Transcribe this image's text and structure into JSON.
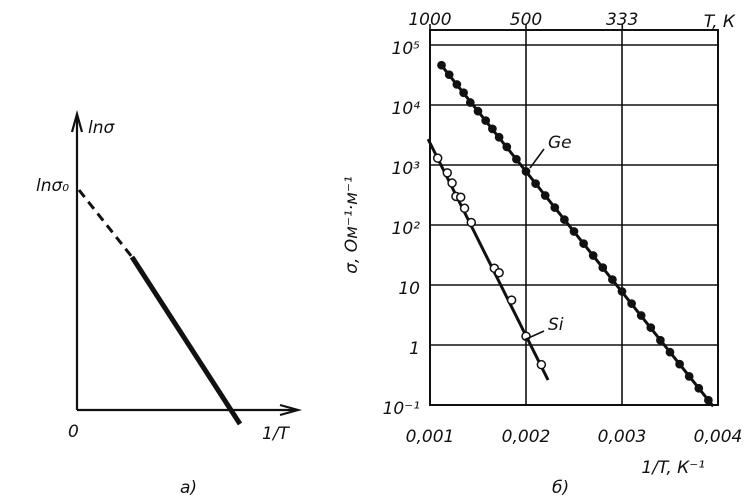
{
  "chart_data": [
    {
      "type": "schematic",
      "ylabel": "lnσ",
      "y_intercept_label": "lnσ₀",
      "origin_label": "0",
      "xlabel": "1/T",
      "panel_label": "а)"
    },
    {
      "type": "scatter",
      "yscale": "log",
      "grid": true,
      "panel_label": "б)",
      "xlabel": "1/T, К⁻¹",
      "ylabel": "σ, Ом⁻¹·м⁻¹",
      "x2label": "T, К",
      "xlim": [
        0.001,
        0.004
      ],
      "xticks": [
        {
          "value": 0.001,
          "label": "0,001"
        },
        {
          "value": 0.002,
          "label": "0,002"
        },
        {
          "value": 0.003,
          "label": "0,003"
        },
        {
          "value": 0.004,
          "label": "0,004"
        }
      ],
      "x2_transform": "reciprocal",
      "x2ticks": [
        1000,
        500,
        333
      ],
      "ylim": [
        0.1,
        100000
      ],
      "yticks": [
        {
          "value": 0.1,
          "label": "10⁻¹"
        },
        1,
        10,
        {
          "value": 100,
          "label": "10²"
        },
        {
          "value": 1000,
          "label": "10³"
        },
        {
          "value": 10000,
          "label": "10⁴"
        },
        {
          "value": 100000,
          "label": "10⁵"
        }
      ],
      "series": [
        {
          "name": "Ge",
          "color": "#111",
          "marker": "filled",
          "x": [
            0.00112,
            0.0012,
            0.00128,
            0.00135,
            0.00142,
            0.0015,
            0.00158,
            0.00165,
            0.00172,
            0.0018,
            0.0019,
            0.002,
            0.0021,
            0.0022,
            0.0023,
            0.0024,
            0.0025,
            0.0026,
            0.0027,
            0.0028,
            0.0029,
            0.003,
            0.0031,
            0.0032,
            0.0033,
            0.0034,
            0.0035,
            0.0036,
            0.0037,
            0.0038,
            0.0039
          ],
          "values": [
            46000,
            32000,
            22000,
            16000,
            11000,
            7900,
            5500,
            4000,
            2900,
            2000,
            1250,
            780,
            490,
            310,
            195,
            123,
            78,
            49,
            31,
            19.5,
            12.3,
            7.8,
            4.9,
            3.1,
            1.95,
            1.2,
            0.76,
            0.48,
            0.3,
            0.19,
            0.12
          ],
          "fit_x": [
            0.0011,
            0.00395
          ],
          "fit_values": [
            50000,
            0.095
          ]
        },
        {
          "name": "Si",
          "color": "#111",
          "marker": "open",
          "x": [
            0.00108,
            0.00118,
            0.00123,
            0.00127,
            0.00132,
            0.00136,
            0.00143,
            0.00167,
            0.00172,
            0.00185,
            0.002,
            0.00216
          ],
          "values": [
            1300,
            740,
            500,
            300,
            290,
            190,
            110,
            19,
            16,
            5.6,
            1.4,
            0.47
          ],
          "fit_x": [
            0.00098,
            0.00223
          ],
          "fit_values": [
            2700,
            0.26
          ]
        }
      ]
    }
  ]
}
